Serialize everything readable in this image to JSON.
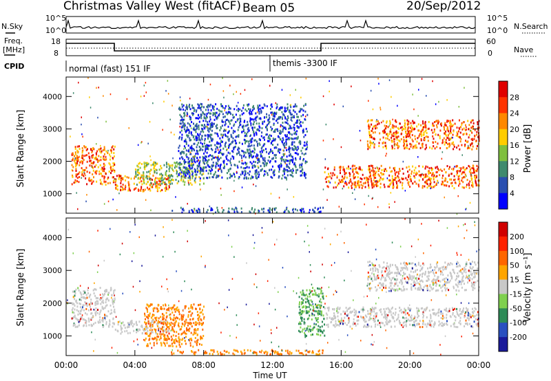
{
  "header": {
    "site_title": "Christmas Valley West (fitACF)",
    "beam": "Beam 05",
    "date": "20/Sep/2012"
  },
  "top_panels": {
    "nsky_label": "N.Sky",
    "nsky_ticks": [
      "10^5",
      "10^0"
    ],
    "nsearch_label": "N.Search",
    "nsearch_ticks": [
      "10^5",
      "10^0"
    ],
    "freq_label_line1": "Freq.",
    "freq_label_line2": "[MHz]",
    "freq_ticks": [
      "18",
      "8"
    ],
    "nave_label": "Nave",
    "nave_ticks": [
      "60",
      "0"
    ],
    "cpid_label": "CPID",
    "cpid_segments": [
      {
        "text": "normal (fast) 151 IF",
        "start_hour": 0
      },
      {
        "text": "themis -3300 IF",
        "start_hour": 12
      }
    ]
  },
  "chart_data": [
    {
      "type": "heatmap",
      "title": "",
      "xlabel": "Time UT",
      "ylabel": "Slant Range [km]",
      "x_ticks": [
        "00:00",
        "04:00",
        "08:00",
        "12:00",
        "16:00",
        "20:00",
        "00:00"
      ],
      "xlim_hours": [
        0,
        24
      ],
      "y_ticks": [
        1000,
        2000,
        3000,
        4000
      ],
      "ylim": [
        400,
        4600
      ],
      "colorbar": {
        "label": "Power [dB]",
        "ticks": [
          4,
          8,
          12,
          16,
          20,
          24,
          28
        ],
        "colors": [
          "#0000ff",
          "#2a4fb0",
          "#3f8a6e",
          "#7fbf3f",
          "#ffcc00",
          "#ff8800",
          "#ff3300",
          "#e00000"
        ]
      },
      "echo_bands": [
        {
          "name": "band-west-early",
          "start_hour": 0.3,
          "end_hour": 2.8,
          "range_from": 1300,
          "range_to": 2500,
          "level": "high"
        },
        {
          "name": "band-0300-0600",
          "start_hour": 2.8,
          "end_hour": 6.0,
          "range_from": 1100,
          "range_to": 1600,
          "level": "high"
        },
        {
          "name": "band-0400-0800-green",
          "start_hour": 4.0,
          "end_hour": 8.0,
          "range_from": 1300,
          "range_to": 2000,
          "level": "medium"
        },
        {
          "name": "ionospheric-cloud",
          "start_hour": 6.5,
          "end_hour": 14.0,
          "range_from": 1500,
          "range_to": 3800,
          "level": "low"
        },
        {
          "name": "ground-scatter-low",
          "start_hour": 6.0,
          "end_hour": 15.0,
          "range_from": 450,
          "range_to": 600,
          "level": "low"
        },
        {
          "name": "evening-main",
          "start_hour": 15.0,
          "end_hour": 24.0,
          "range_from": 1200,
          "range_to": 1900,
          "level": "high"
        },
        {
          "name": "evening-upper",
          "start_hour": 17.5,
          "end_hour": 24.0,
          "range_from": 2400,
          "range_to": 3300,
          "level": "high"
        }
      ]
    },
    {
      "type": "heatmap",
      "title": "",
      "xlabel": "Time UT",
      "ylabel": "Slant Range [km]",
      "x_ticks": [
        "00:00",
        "04:00",
        "08:00",
        "12:00",
        "16:00",
        "20:00",
        "00:00"
      ],
      "xlim_hours": [
        0,
        24
      ],
      "y_ticks": [
        1000,
        2000,
        3000,
        4000
      ],
      "ylim": [
        400,
        4600
      ],
      "colorbar": {
        "label": "Velocity [m s⁻¹]",
        "ticks": [
          "200",
          "100",
          "50",
          "15",
          "-15",
          "-50",
          "-100",
          "-200"
        ],
        "colors": [
          "#1a1a9a",
          "#2a50c0",
          "#2e8b57",
          "#7fd04f",
          "#c8c8c8",
          "#ffa500",
          "#ff6600",
          "#ff2200",
          "#d00000"
        ]
      },
      "echo_bands": [
        {
          "name": "gs-west-early",
          "start_hour": 0.3,
          "end_hour": 2.8,
          "range_from": 1300,
          "range_to": 2500,
          "level": "ground"
        },
        {
          "name": "gs-0300",
          "start_hour": 2.8,
          "end_hour": 6.0,
          "range_from": 1100,
          "range_to": 1500,
          "level": "ground"
        },
        {
          "name": "neg-vel-morning",
          "start_hour": 4.5,
          "end_hour": 8.0,
          "range_from": 700,
          "range_to": 2000,
          "level": "negative"
        },
        {
          "name": "low-band-neg",
          "start_hour": 6.0,
          "end_hour": 15.0,
          "range_from": 450,
          "range_to": 600,
          "level": "negative"
        },
        {
          "name": "pos-vel-14",
          "start_hour": 13.5,
          "end_hour": 15.0,
          "range_from": 1000,
          "range_to": 2500,
          "level": "positive"
        },
        {
          "name": "gs-evening-main",
          "start_hour": 15.0,
          "end_hour": 24.0,
          "range_from": 1300,
          "range_to": 1900,
          "level": "ground"
        },
        {
          "name": "gs-evening-upper",
          "start_hour": 17.5,
          "end_hour": 24.0,
          "range_from": 2400,
          "range_to": 3300,
          "level": "ground"
        }
      ]
    }
  ]
}
